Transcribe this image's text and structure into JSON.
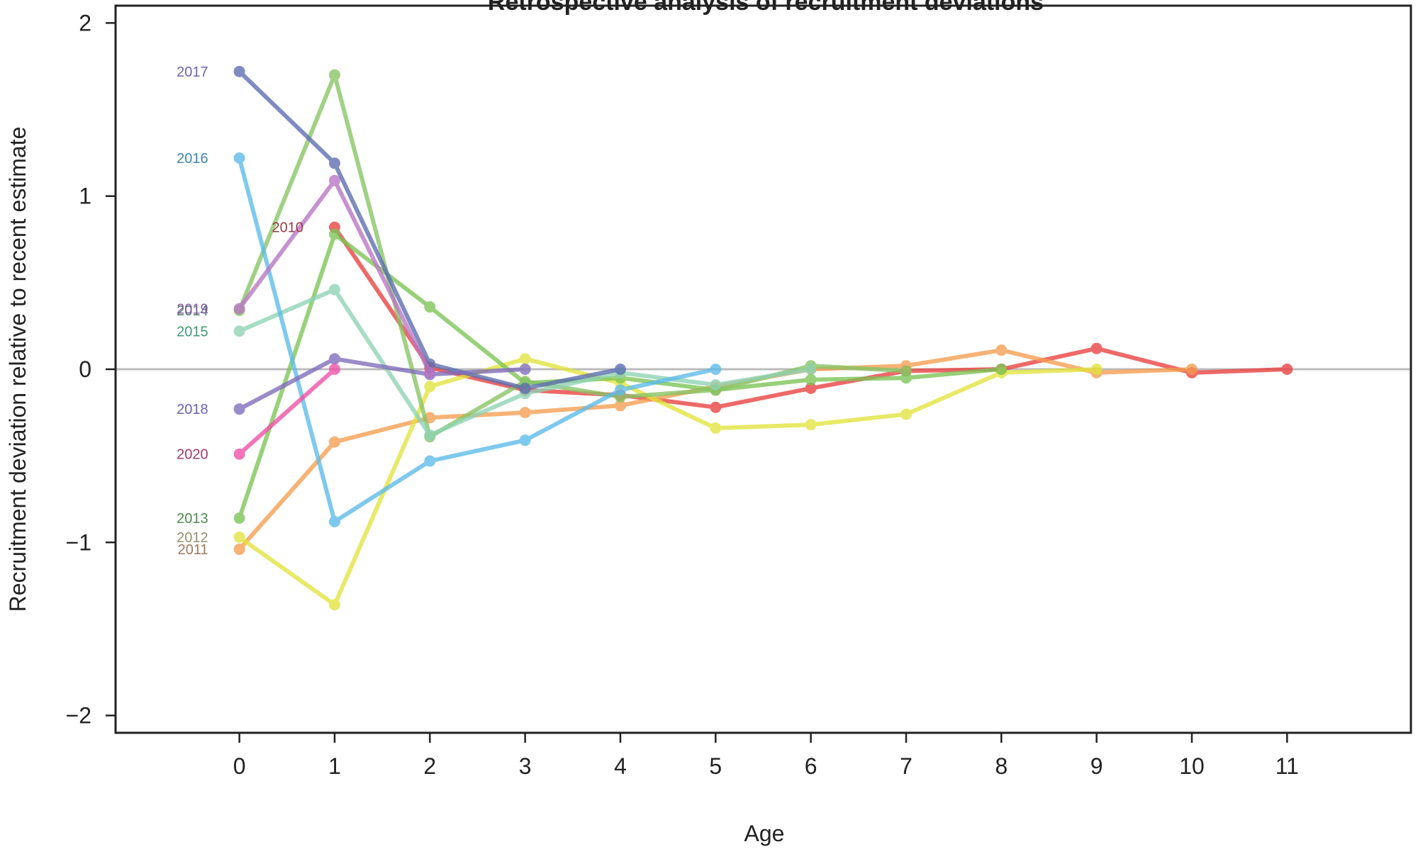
{
  "chart_data": {
    "type": "line",
    "title": "Retrospective analysis of recruitment deviations",
    "xlabel": "Age",
    "ylabel": "Recruitment deviation relative to recent estimate",
    "xlim": [
      -1.3,
      12.3
    ],
    "ylim": [
      -2.1,
      2.1
    ],
    "x_ticks": [
      0,
      1,
      2,
      3,
      4,
      5,
      6,
      7,
      8,
      9,
      10,
      11
    ],
    "y_ticks": [
      -2,
      -1,
      0,
      1,
      2
    ],
    "reference_line": {
      "y": 0,
      "color": "#bdbdbd"
    },
    "grid": false,
    "series": [
      {
        "name": "2010",
        "color": "#e8403f",
        "label_color": "#9a3b4a",
        "label_at": 1,
        "x": [
          1,
          2,
          3,
          4,
          5,
          6,
          7,
          8,
          9,
          10,
          11
        ],
        "values": [
          0.82,
          0.01,
          -0.12,
          -0.15,
          -0.22,
          -0.11,
          -0.01,
          0.0,
          0.12,
          -0.02,
          0.0
        ]
      },
      {
        "name": "2011",
        "color": "#f59d4f",
        "label_color": "#a0765a",
        "label_at": 0,
        "x": [
          0,
          1,
          2,
          3,
          4,
          5,
          6,
          7,
          8,
          9,
          10
        ],
        "values": [
          -1.04,
          -0.42,
          -0.28,
          -0.25,
          -0.21,
          -0.1,
          0.0,
          0.02,
          0.11,
          -0.02,
          0.0
        ]
      },
      {
        "name": "2012",
        "color": "#e2e33c",
        "label_color": "#9a9070",
        "label_at": 0,
        "x": [
          0,
          1,
          2,
          3,
          4,
          5,
          6,
          7,
          8,
          9
        ],
        "values": [
          -0.97,
          -1.36,
          -0.1,
          0.06,
          -0.08,
          -0.34,
          -0.32,
          -0.26,
          -0.02,
          0.0
        ]
      },
      {
        "name": "2013",
        "color": "#7cc455",
        "label_color": "#4f8a4e",
        "label_at": 0,
        "x": [
          0,
          1,
          2,
          3,
          4,
          5,
          6,
          7,
          8
        ],
        "values": [
          -0.86,
          0.78,
          0.36,
          -0.08,
          -0.05,
          -0.12,
          -0.06,
          -0.05,
          0.0
        ]
      },
      {
        "name": "2014",
        "color": "#87c463",
        "label_color": "#4a7a76",
        "label_at": 0,
        "x": [
          0,
          1,
          2,
          3,
          4,
          5,
          6,
          7
        ],
        "values": [
          0.34,
          1.7,
          -0.39,
          -0.07,
          -0.16,
          -0.12,
          0.02,
          -0.01
        ]
      },
      {
        "name": "2015",
        "color": "#8ed3b4",
        "label_color": "#3f9c72",
        "label_at": 0,
        "x": [
          0,
          1,
          2,
          3,
          4,
          5,
          6
        ],
        "values": [
          0.22,
          0.46,
          -0.38,
          -0.14,
          -0.02,
          -0.09,
          0.0
        ]
      },
      {
        "name": "2016",
        "color": "#5bbbe8",
        "label_color": "#3d86b2",
        "label_at": 0,
        "x": [
          0,
          1,
          2,
          3,
          4,
          5
        ],
        "values": [
          1.22,
          -0.88,
          -0.53,
          -0.41,
          -0.12,
          0.0
        ]
      },
      {
        "name": "2017",
        "color": "#5a6cb0",
        "label_color": "#6f63b0",
        "label_at": 0,
        "x": [
          0,
          1,
          2,
          3,
          4
        ],
        "values": [
          1.72,
          1.19,
          0.03,
          -0.11,
          0.0
        ]
      },
      {
        "name": "2018",
        "color": "#7e6bbb",
        "label_color": "#6f5fb0",
        "label_at": 0,
        "x": [
          0,
          1,
          2,
          3
        ],
        "values": [
          -0.23,
          0.06,
          -0.03,
          0.0
        ]
      },
      {
        "name": "2019",
        "color": "#b874c4",
        "label_color": "#8a5ea8",
        "label_at": 0,
        "x": [
          0,
          1,
          2
        ],
        "values": [
          0.35,
          1.09,
          -0.02
        ]
      },
      {
        "name": "2020",
        "color": "#ef4fa6",
        "label_color": "#a0386a",
        "label_at": 0,
        "x": [
          0,
          1
        ],
        "values": [
          -0.49,
          0.0
        ]
      }
    ]
  }
}
